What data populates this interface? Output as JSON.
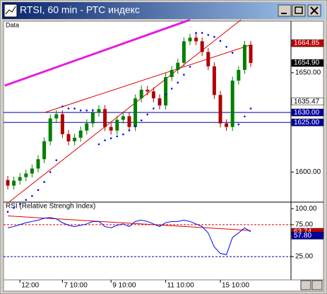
{
  "window_title": "RTSI, 60 min - РТС индекс",
  "chart_data": [
    {
      "type": "candlestick",
      "label": "Data",
      "categories": [
        null,
        null,
        "12:00",
        null,
        null,
        null,
        null,
        null,
        null,
        "7 10:00",
        null,
        null,
        null,
        null,
        null,
        null,
        null,
        "9 10:00",
        null,
        null,
        null,
        null,
        null,
        null,
        null,
        null,
        "11 10:00",
        null,
        null,
        null,
        null,
        null,
        null,
        null,
        null,
        "15 10:00",
        null,
        null,
        null,
        null,
        null
      ],
      "open": [
        1596,
        1593.2,
        1595.7,
        1597.5,
        1599.3,
        1601.8,
        1606.5,
        1615.5,
        1627.0,
        1629.1,
        1619.1,
        1615.5,
        1617.3,
        1620.9,
        1624.5,
        1629.9,
        1631.7,
        1622.7,
        1620.9,
        1626.3,
        1628.1,
        1622.7,
        1637.1,
        1641.4,
        1640.6,
        1637.1,
        1633.5,
        1647.8,
        1651.4,
        1655.0,
        1665.8,
        1667.6,
        1665.8,
        1660.4,
        1653.2,
        1638.8,
        1624.5,
        1622.7,
        1646.0,
        1651.4,
        1664.0
      ],
      "high": [
        1598,
        1597.7,
        1599.5,
        1601.3,
        1603.8,
        1608.5,
        1617.5,
        1629.0,
        1631.1,
        1631.1,
        1621.1,
        1619.3,
        1622.9,
        1626.5,
        1631.9,
        1633.7,
        1633.7,
        1624.7,
        1628.3,
        1630.1,
        1630.1,
        1639.1,
        1643.4,
        1643.4,
        1642.6,
        1639.1,
        1649.8,
        1653.4,
        1657.0,
        1667.8,
        1669.6,
        1669.6,
        1667.8,
        1662.4,
        1655.2,
        1640.8,
        1626.5,
        1648.0,
        1653.4,
        1666.0,
        1666.0
      ],
      "low": [
        1591.2,
        1591.2,
        1593.7,
        1595.5,
        1597.3,
        1599.8,
        1604.5,
        1613.5,
        1625.0,
        1617.1,
        1613.5,
        1613.5,
        1615.3,
        1618.9,
        1622.5,
        1627.9,
        1620.7,
        1618.9,
        1618.9,
        1624.3,
        1620.7,
        1620.7,
        1635.1,
        1638.6,
        1635.1,
        1631.5,
        1631.5,
        1645.8,
        1649.4,
        1653.0,
        1663.8,
        1663.8,
        1658.4,
        1651.2,
        1636.8,
        1622.5,
        1620.7,
        1620.7,
        1644.0,
        1649.4,
        1652.9
      ],
      "close": [
        1593.2,
        1595.7,
        1597.5,
        1599.3,
        1601.8,
        1606.5,
        1615.5,
        1627.0,
        1629.1,
        1619.1,
        1615.5,
        1617.3,
        1620.9,
        1624.5,
        1629.9,
        1631.7,
        1622.7,
        1620.9,
        1626.3,
        1628.1,
        1622.7,
        1637.1,
        1641.4,
        1640.6,
        1637.1,
        1633.5,
        1647.8,
        1651.4,
        1655.0,
        1665.8,
        1667.6,
        1665.8,
        1660.4,
        1653.2,
        1638.8,
        1624.5,
        1622.7,
        1646.0,
        1651.4,
        1664.0,
        1654.9
      ],
      "up_color": "#008000",
      "down_color": "#b00000",
      "sar": {
        "color": "#0000ff",
        "values": [
          1580,
          1582,
          1584,
          1586,
          1588,
          1591,
          1595,
          1600,
          1606,
          1633,
          1632,
          1632,
          1631,
          1631,
          1631,
          1614,
          1616,
          1617,
          1618,
          1619,
          1621,
          1623,
          1626,
          1629,
          1632,
          1635,
          1639,
          1642,
          1645,
          1649,
          1653,
          1670,
          1670,
          1669,
          1668,
          1666,
          1663,
          1660,
          1624,
          1628,
          1632
        ]
      },
      "trendlines": [
        {
          "color": "#e020e0",
          "x": [
            -0.5,
            30
          ],
          "y": [
            1643.5,
            1676.6
          ]
        },
        {
          "color": "#e00000",
          "x": [
            0.2,
            38.4
          ],
          "y": [
            1584.9,
            1676.6
          ]
        },
        {
          "color": "#e00000",
          "x": [
            6,
            40
          ],
          "y": [
            1629.9,
            1664
          ]
        }
      ],
      "hlines": [
        {
          "color": "#0000a0",
          "value": 1630
        },
        {
          "color": "#0000a0",
          "value": 1625
        }
      ],
      "markers": [
        {
          "value": 1664.85,
          "label": "1664.85",
          "color": "#c00000"
        },
        {
          "value": 1654.9,
          "label": "1654.90",
          "color": "#000000"
        },
        {
          "value": 1635.47,
          "label": "1635.47",
          "color": "#ffffff"
        },
        {
          "value": 1630,
          "label": "1630.00",
          "color": "#0000a0"
        },
        {
          "value": 1625,
          "label": "1625.00",
          "color": "#0000a0"
        }
      ],
      "ylim": [
        1584.9,
        1675.9
      ],
      "yticks": [
        {
          "value": 1650,
          "label": "1650.00"
        },
        {
          "value": 1600,
          "label": "1600.00"
        }
      ]
    },
    {
      "type": "line",
      "label": "RSI (Relative Strengh Index)",
      "color": "#0000ff",
      "values": [
        70,
        72,
        75,
        78,
        80,
        82,
        85,
        86,
        84,
        78,
        74,
        72,
        74,
        76,
        80,
        80,
        72,
        70,
        74,
        76,
        72,
        80,
        82,
        80,
        76,
        72,
        78,
        80,
        80,
        82,
        80,
        76,
        72,
        62,
        40,
        30,
        28,
        55,
        62,
        70,
        63.74
      ],
      "trendlines": [
        {
          "color": "#e00000",
          "x": [
            0,
            40
          ],
          "y": [
            88.6,
            65.9
          ]
        }
      ],
      "hlines": [
        {
          "color": "#e00000",
          "value": 75
        },
        {
          "color": "#0000a0",
          "value": 25
        }
      ],
      "markers": [
        {
          "value": 63.74,
          "label": "63.74",
          "color": "#c00000"
        },
        {
          "value": 57.8,
          "label": "57.80",
          "color": "#0000a0"
        }
      ],
      "ylim": [
        -11.4,
        110.2
      ],
      "yticks": [
        {
          "value": 100,
          "label": "100.00"
        },
        {
          "value": 75,
          "label": "75.00"
        },
        {
          "value": 25,
          "label": "25.00"
        }
      ]
    }
  ]
}
